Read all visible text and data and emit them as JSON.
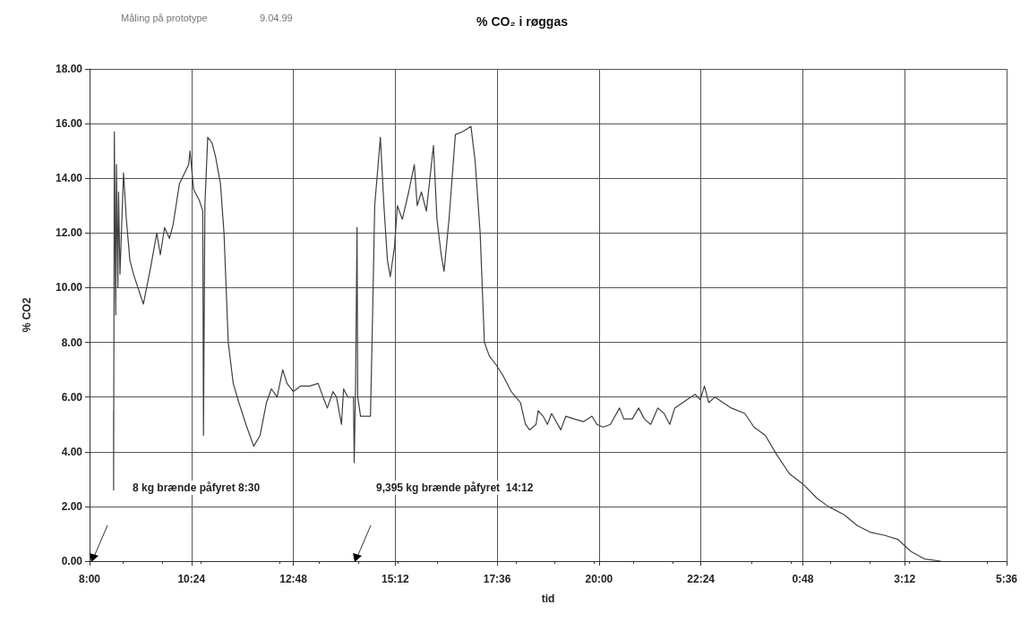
{
  "chart_data": {
    "type": "line",
    "title": "% CO₂ i røggas",
    "xlabel": "tid",
    "ylabel": "% CO2",
    "annotations": [
      "Måling på prototype",
      "9.04.99",
      "8 kg brænde påfyret 8:30",
      "9,395 kg brænde påfyret  14:12"
    ],
    "xlim": [
      "--04-09T08:00",
      "--04-10T05:36"
    ],
    "xticks": [
      {
        "value": "--04-09T08:00",
        "label": "8:00"
      },
      {
        "value": "--04-09T10:24",
        "label": "10:24"
      },
      {
        "value": "--04-09T12:48",
        "label": "12:48"
      },
      {
        "value": "--04-09T15:12",
        "label": "15:12"
      },
      {
        "value": "--04-09T17:36",
        "label": "17:36"
      },
      {
        "value": "--04-09T20:00",
        "label": "20:00"
      },
      {
        "value": "--04-09T22:24",
        "label": "22:24"
      },
      {
        "value": "--04-10T00:48",
        "label": "0:48"
      },
      {
        "value": "--04-10T03:12",
        "label": "3:12"
      },
      {
        "value": "--04-10T05:36",
        "label": "5:36"
      }
    ],
    "ylim": [
      0,
      18
    ],
    "yticks": [
      {
        "value": 0,
        "label": "0.00"
      },
      {
        "value": 2,
        "label": "2.00"
      },
      {
        "value": 4,
        "label": "4.00"
      },
      {
        "value": 6,
        "label": "6.00"
      },
      {
        "value": 8,
        "label": "8.00"
      },
      {
        "value": 10,
        "label": "10.00"
      },
      {
        "value": 12,
        "label": "12.00"
      },
      {
        "value": 14,
        "label": "14.00"
      },
      {
        "value": 16,
        "label": "16.00"
      },
      {
        "value": 18,
        "label": "18.00"
      }
    ],
    "grid": true,
    "marker": "none",
    "line_style": "solid",
    "x": [
      "--04-09T08:34",
      "--04-09T08:34",
      "--04-09T08:35",
      "--04-09T08:37",
      "--04-09T08:38",
      "--04-09T08:40",
      "--04-09T08:41",
      "--04-09T08:43",
      "--04-09T08:48",
      "--04-09T08:52",
      "--04-09T08:57",
      "--04-09T09:02",
      "--04-09T09:16",
      "--04-09T09:26",
      "--04-09T09:35",
      "--04-09T09:40",
      "--04-09T09:46",
      "--04-09T09:53",
      "--04-09T09:58",
      "--04-09T10:07",
      "--04-09T10:20",
      "--04-09T10:22",
      "--04-09T10:27",
      "--04-09T10:35",
      "--04-09T10:40",
      "--04-09T10:41",
      "--04-09T10:43",
      "--04-09T10:47",
      "--04-09T10:53",
      "--04-09T10:58",
      "--04-09T11:05",
      "--04-09T11:10",
      "--04-09T11:16",
      "--04-09T11:23",
      "--04-09T11:31",
      "--04-09T11:41",
      "--04-09T11:52",
      "--04-09T12:01",
      "--04-09T12:10",
      "--04-09T12:17",
      "--04-09T12:25",
      "--04-09T12:33",
      "--04-09T12:39",
      "--04-09T12:48",
      "--04-09T12:58",
      "--04-09T13:11",
      "--04-09T13:23",
      "--04-09T13:30",
      "--04-09T13:36",
      "--04-09T13:44",
      "--04-09T13:49",
      "--04-09T13:56",
      "--04-09T13:59",
      "--04-09T14:05",
      "--04-09T14:13",
      "--04-09T14:14",
      "--04-09T14:16",
      "--04-09T14:18",
      "--04-09T14:19",
      "--04-09T14:23",
      "--04-09T14:37",
      "--04-09T14:40",
      "--04-09T14:43",
      "--04-09T14:51",
      "--04-09T14:56",
      "--04-09T15:01",
      "--04-09T15:05",
      "--04-09T15:11",
      "--04-09T15:15",
      "--04-09T15:22",
      "--04-09T15:31",
      "--04-09T15:39",
      "--04-09T15:43",
      "--04-09T15:49",
      "--04-09T15:56",
      "--04-09T16:06",
      "--04-09T16:11",
      "--04-09T16:17",
      "--04-09T16:21",
      "--04-09T16:28",
      "--04-09T16:37",
      "--04-09T16:47",
      "--04-09T16:59",
      "--04-09T17:05",
      "--04-09T17:12",
      "--04-09T17:18",
      "--04-09T17:25",
      "--04-09T17:34",
      "--04-09T17:44",
      "--04-09T17:56",
      "--04-09T18:09",
      "--04-09T18:16",
      "--04-09T18:22",
      "--04-09T18:31",
      "--04-09T18:34",
      "--04-09T18:41",
      "--04-09T18:47",
      "--04-09T18:53",
      "--04-09T19:06",
      "--04-09T19:13",
      "--04-09T19:25",
      "--04-09T19:38",
      "--04-09T19:50",
      "--04-09T19:57",
      "--04-09T20:06",
      "--04-09T20:16",
      "--04-09T20:29",
      "--04-09T20:35",
      "--04-09T20:47",
      "--04-09T20:56",
      "--04-09T21:04",
      "--04-09T21:13",
      "--04-09T21:23",
      "--04-09T21:32",
      "--04-09T21:40",
      "--04-09T21:47",
      "--04-09T22:04",
      "--04-09T22:16",
      "--04-09T22:23",
      "--04-09T22:29",
      "--04-09T22:35",
      "--04-09T22:44",
      "--04-09T22:55",
      "--04-09T23:07",
      "--04-09T23:26",
      "--04-09T23:39",
      "--04-09T23:55",
      "--04-10T00:11",
      "--04-10T00:29",
      "--04-10T00:49",
      "--04-10T01:08",
      "--04-10T01:24",
      "--04-10T01:46",
      "--04-10T02:05",
      "--04-10T02:24",
      "--04-10T02:43",
      "--04-10T03:02",
      "--04-10T03:21",
      "--04-10T03:40",
      "--04-10T04:03"
    ],
    "series": [
      {
        "color": "#404040",
        "values": [
          5.5,
          2.6,
          15.7,
          9.0,
          14.5,
          10.0,
          13.5,
          10.5,
          14.2,
          12.5,
          11.0,
          10.5,
          9.4,
          10.7,
          12.0,
          11.2,
          12.2,
          11.8,
          12.3,
          13.8,
          14.5,
          15.0,
          13.6,
          13.2,
          12.8,
          4.6,
          13.0,
          15.5,
          15.3,
          14.8,
          13.8,
          12.0,
          8.0,
          6.5,
          5.8,
          5.0,
          4.2,
          4.6,
          5.8,
          6.3,
          6.0,
          7.0,
          6.5,
          6.2,
          6.4,
          6.4,
          6.5,
          6.0,
          5.6,
          6.2,
          6.0,
          5.0,
          6.3,
          6.0,
          6.0,
          3.6,
          6.5,
          12.2,
          6.0,
          5.3,
          5.3,
          9.0,
          13.0,
          15.5,
          13.0,
          11.0,
          10.4,
          11.5,
          13.0,
          12.5,
          13.5,
          14.5,
          13.0,
          13.5,
          12.8,
          15.2,
          12.5,
          11.2,
          10.6,
          12.5,
          15.6,
          15.7,
          15.9,
          14.6,
          12.0,
          8.0,
          7.5,
          7.2,
          6.8,
          6.2,
          5.8,
          5.0,
          4.8,
          5.0,
          5.5,
          5.3,
          5.0,
          5.4,
          4.8,
          5.3,
          5.2,
          5.1,
          5.3,
          5.0,
          4.9,
          5.0,
          5.6,
          5.2,
          5.2,
          5.6,
          5.2,
          5.0,
          5.6,
          5.4,
          5.0,
          5.6,
          5.9,
          6.1,
          5.9,
          6.4,
          5.8,
          6.0,
          5.8,
          5.6,
          5.4,
          4.9,
          4.6,
          3.9,
          3.2,
          2.8,
          2.3,
          2.0,
          1.7,
          1.3,
          1.05,
          0.95,
          0.8,
          0.35,
          0.08,
          0
        ]
      }
    ]
  }
}
